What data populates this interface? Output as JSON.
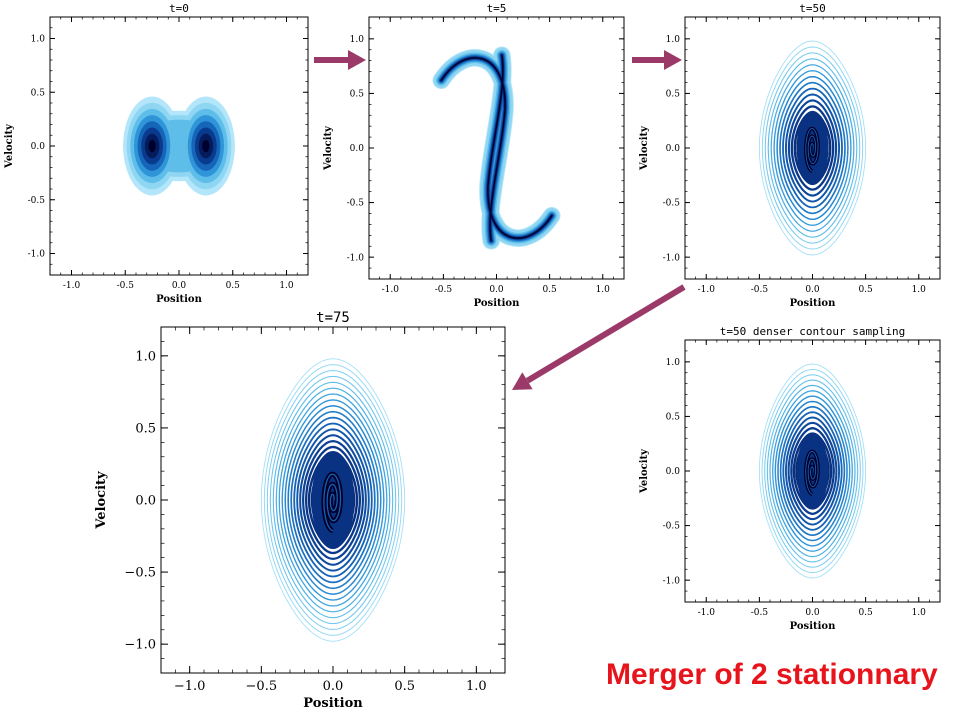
{
  "caption": "Merger of 2 stationnary",
  "colors": {
    "arrow": "#9b3a68",
    "caption": "#e8141c",
    "contour_light": "#a8e0f5",
    "contour_dark": "#00002e"
  },
  "chart_data": [
    {
      "type": "contour",
      "title": "t=0",
      "xlabel": "Position",
      "ylabel": "Velocity",
      "xlim": [
        -1.2,
        1.2
      ],
      "ylim": [
        -1.2,
        1.2
      ],
      "xticks": [
        "-1.0",
        "-0.5",
        "0.0",
        "0.5",
        "1.0"
      ],
      "yticks": [
        "1.0",
        "0.5",
        "0.0",
        "-0.5",
        "-1.0"
      ],
      "style": "filled",
      "blobs": [
        {
          "x": -0.25,
          "v": 0.0
        },
        {
          "x": 0.25,
          "v": 0.0
        }
      ]
    },
    {
      "type": "contour",
      "title": "t=5",
      "xlabel": "Position",
      "ylabel": "Velocity",
      "xlim": [
        -1.2,
        1.2
      ],
      "ylim": [
        -1.2,
        1.2
      ],
      "xticks": [
        "-1.0",
        "-0.5",
        "0.0",
        "0.5",
        "1.0"
      ],
      "yticks": [
        "1.0",
        "0.5",
        "0.0",
        "-0.5",
        "-1.0"
      ],
      "style": "filled-sheared"
    },
    {
      "type": "contour",
      "title": "t=50",
      "xlabel": "Position",
      "ylabel": "Velocity",
      "xlim": [
        -1.2,
        1.2
      ],
      "ylim": [
        -1.2,
        1.2
      ],
      "xticks": [
        "-1.0",
        "-0.5",
        "0.0",
        "0.5",
        "1.0"
      ],
      "yticks": [
        "1.0",
        "0.5",
        "0.0",
        "-0.5",
        "-1.0"
      ],
      "style": "lines",
      "levels": 18
    },
    {
      "type": "contour",
      "title": "t=75",
      "xlabel": "Position",
      "ylabel": "Velocity",
      "xlim": [
        -1.2,
        1.2
      ],
      "ylim": [
        -1.2,
        1.2
      ],
      "xticks": [
        "−1.0",
        "−0.5",
        "0.0",
        "0.5",
        "1.0"
      ],
      "yticks": [
        "1.0",
        "0.5",
        "0.0",
        "−0.5",
        "−1.0"
      ],
      "style": "lines",
      "levels": 24
    },
    {
      "type": "contour",
      "title": "t=50 denser contour sampling",
      "xlabel": "Position",
      "ylabel": "Velocity",
      "xlim": [
        -1.2,
        1.2
      ],
      "ylim": [
        -1.2,
        1.2
      ],
      "xticks": [
        "-1.0",
        "-0.5",
        "0.0",
        "0.5",
        "1.0"
      ],
      "yticks": [
        "1.0",
        "0.5",
        "0.0",
        "-0.5",
        "-1.0"
      ],
      "style": "lines",
      "levels": 20
    }
  ]
}
